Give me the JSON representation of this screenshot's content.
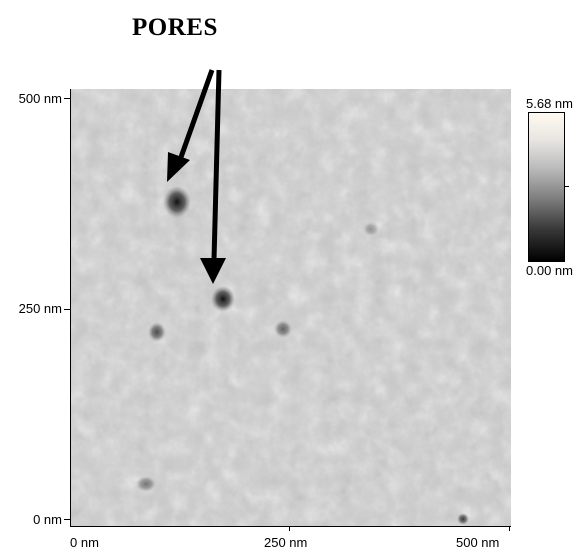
{
  "title": "PORES",
  "scan": {
    "y_axis": {
      "top": "500 nm",
      "mid": "250 nm",
      "bottom": "0 nm"
    },
    "x_axis": {
      "left": "0 nm",
      "mid": "250 nm",
      "right": "500 nm"
    }
  },
  "colorbar": {
    "max": "5.68 nm",
    "min": "0.00 nm"
  }
}
